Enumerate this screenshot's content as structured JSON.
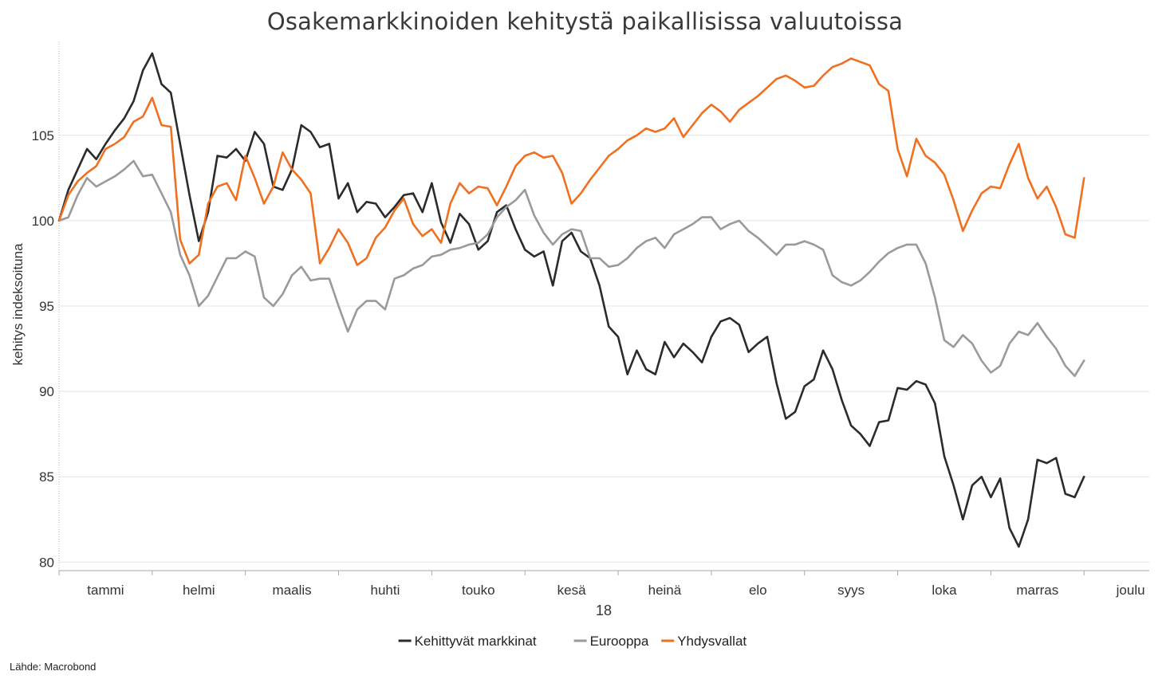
{
  "source": "Lähde: Macrobond",
  "chart_data": {
    "type": "line",
    "title": "Osakemarkkinoiden kehitystä paikallisissa valuutoissa",
    "ylabel": "kehitys indeksoituna",
    "xlabel": "18",
    "ylim": [
      79.5,
      110.5
    ],
    "yticks": [
      80,
      85,
      90,
      95,
      100,
      105
    ],
    "grid": "horizontal",
    "legend_position": "bottom",
    "x_unit": "month (2018, 0 = 1 Jan)",
    "xlim": [
      0,
      11.7
    ],
    "x_tick_labels": [
      "tammi",
      "helmi",
      "maalis",
      "huhti",
      "touko",
      "kesä",
      "heinä",
      "elo",
      "syys",
      "loka",
      "marras",
      "joulu"
    ],
    "x": [
      0.0,
      0.1,
      0.2,
      0.3,
      0.4,
      0.5,
      0.6,
      0.7,
      0.8,
      0.9,
      1.0,
      1.1,
      1.2,
      1.3,
      1.4,
      1.5,
      1.6,
      1.7,
      1.8,
      1.9,
      2.0,
      2.1,
      2.2,
      2.3,
      2.4,
      2.5,
      2.6,
      2.7,
      2.8,
      2.9,
      3.0,
      3.1,
      3.2,
      3.3,
      3.4,
      3.5,
      3.6,
      3.7,
      3.8,
      3.9,
      4.0,
      4.1,
      4.2,
      4.3,
      4.4,
      4.5,
      4.6,
      4.7,
      4.8,
      4.9,
      5.0,
      5.1,
      5.2,
      5.3,
      5.4,
      5.5,
      5.6,
      5.7,
      5.8,
      5.9,
      6.0,
      6.1,
      6.2,
      6.3,
      6.4,
      6.5,
      6.6,
      6.7,
      6.8,
      6.9,
      7.0,
      7.1,
      7.2,
      7.3,
      7.4,
      7.5,
      7.6,
      7.7,
      7.8,
      7.9,
      8.0,
      8.1,
      8.2,
      8.3,
      8.4,
      8.5,
      8.6,
      8.7,
      8.8,
      8.9,
      9.0,
      9.1,
      9.2,
      9.3,
      9.4,
      9.5,
      9.6,
      9.7,
      9.8,
      9.9,
      10.0,
      10.1,
      10.2,
      10.3,
      10.4,
      10.5,
      10.6,
      10.7,
      10.8,
      10.9,
      11.0
    ],
    "series": [
      {
        "name": "Kehittyvät markkinat",
        "color": "#2b2b2b",
        "values": [
          100.0,
          101.8,
          103.0,
          104.2,
          103.6,
          104.5,
          105.3,
          106.0,
          107.0,
          108.8,
          109.8,
          108.0,
          107.5,
          104.5,
          101.5,
          98.8,
          100.5,
          103.8,
          103.7,
          104.2,
          103.5,
          105.2,
          104.5,
          102.0,
          101.8,
          103.0,
          105.6,
          105.2,
          104.3,
          104.5,
          101.3,
          102.2,
          100.5,
          101.1,
          101.0,
          100.2,
          100.8,
          101.5,
          101.6,
          100.5,
          102.2,
          99.9,
          98.7,
          100.4,
          99.8,
          98.3,
          98.8,
          100.5,
          100.9,
          99.5,
          98.3,
          97.9,
          98.2,
          96.2,
          98.8,
          99.3,
          98.2,
          97.8,
          96.2,
          93.8,
          93.2,
          91.0,
          92.4,
          91.3,
          91.0,
          92.9,
          92.0,
          92.8,
          92.3,
          91.7,
          93.2,
          94.1,
          94.3,
          93.9,
          92.3,
          92.8,
          93.2,
          90.5,
          88.4,
          88.8,
          90.3,
          90.7,
          92.4,
          91.3,
          89.5,
          88.0,
          87.5,
          86.8,
          88.2,
          88.3,
          90.2,
          90.1,
          90.6,
          90.4,
          89.3,
          86.2,
          84.5,
          82.5,
          84.5,
          85.0,
          83.8,
          84.9,
          82.0,
          80.9,
          82.5,
          86.0,
          85.8,
          86.1,
          84.0,
          83.8,
          85.0
        ]
      },
      {
        "name": "Eurooppa",
        "color": "#9a9a9a",
        "values": [
          100.0,
          100.2,
          101.5,
          102.5,
          102.0,
          102.3,
          102.6,
          103.0,
          103.5,
          102.6,
          102.7,
          101.6,
          100.5,
          98.0,
          96.8,
          95.0,
          95.6,
          96.7,
          97.8,
          97.8,
          98.2,
          97.9,
          95.5,
          95.0,
          95.7,
          96.8,
          97.3,
          96.5,
          96.6,
          96.6,
          95.0,
          93.5,
          94.8,
          95.3,
          95.3,
          94.8,
          96.6,
          96.8,
          97.2,
          97.4,
          97.9,
          98.0,
          98.3,
          98.4,
          98.6,
          98.7,
          99.2,
          100.2,
          100.8,
          101.2,
          101.8,
          100.3,
          99.3,
          98.6,
          99.2,
          99.5,
          99.4,
          97.8,
          97.8,
          97.3,
          97.4,
          97.8,
          98.4,
          98.8,
          99.0,
          98.4,
          99.2,
          99.5,
          99.8,
          100.2,
          100.2,
          99.5,
          99.8,
          100.0,
          99.4,
          99.0,
          98.5,
          98.0,
          98.6,
          98.6,
          98.8,
          98.6,
          98.3,
          96.8,
          96.4,
          96.2,
          96.5,
          97.0,
          97.6,
          98.1,
          98.4,
          98.6,
          98.6,
          97.5,
          95.5,
          93.0,
          92.6,
          93.3,
          92.8,
          91.8,
          91.1,
          91.5,
          92.8,
          93.5,
          93.3,
          94.0,
          93.2,
          92.5,
          91.5,
          90.9,
          91.8
        ]
      },
      {
        "name": "Yhdysvallat",
        "color": "#f07020",
        "values": [
          100.0,
          101.5,
          102.3,
          102.8,
          103.2,
          104.2,
          104.5,
          104.9,
          105.8,
          106.1,
          107.2,
          105.6,
          105.5,
          98.9,
          97.5,
          98.0,
          101.0,
          102.0,
          102.2,
          101.2,
          103.8,
          102.5,
          101.0,
          102.0,
          104.0,
          103.0,
          102.4,
          101.6,
          97.5,
          98.4,
          99.5,
          98.7,
          97.4,
          97.8,
          99.0,
          99.6,
          100.6,
          101.3,
          99.8,
          99.1,
          99.5,
          98.7,
          101.0,
          102.2,
          101.6,
          102.0,
          101.9,
          100.9,
          102.0,
          103.2,
          103.8,
          104.0,
          103.7,
          103.8,
          102.8,
          101.0,
          101.6,
          102.4,
          103.1,
          103.8,
          104.2,
          104.7,
          105.0,
          105.4,
          105.2,
          105.4,
          106.0,
          104.9,
          105.6,
          106.3,
          106.8,
          106.4,
          105.8,
          106.5,
          106.9,
          107.3,
          107.8,
          108.3,
          108.5,
          108.2,
          107.8,
          107.9,
          108.5,
          109.0,
          109.2,
          109.5,
          109.3,
          109.1,
          108.0,
          107.6,
          104.2,
          102.6,
          104.8,
          103.8,
          103.4,
          102.7,
          101.2,
          99.4,
          100.6,
          101.6,
          102.0,
          101.9,
          103.3,
          104.5,
          102.5,
          101.3,
          102.0,
          100.8,
          99.2,
          99.0,
          102.5
        ]
      }
    ]
  }
}
